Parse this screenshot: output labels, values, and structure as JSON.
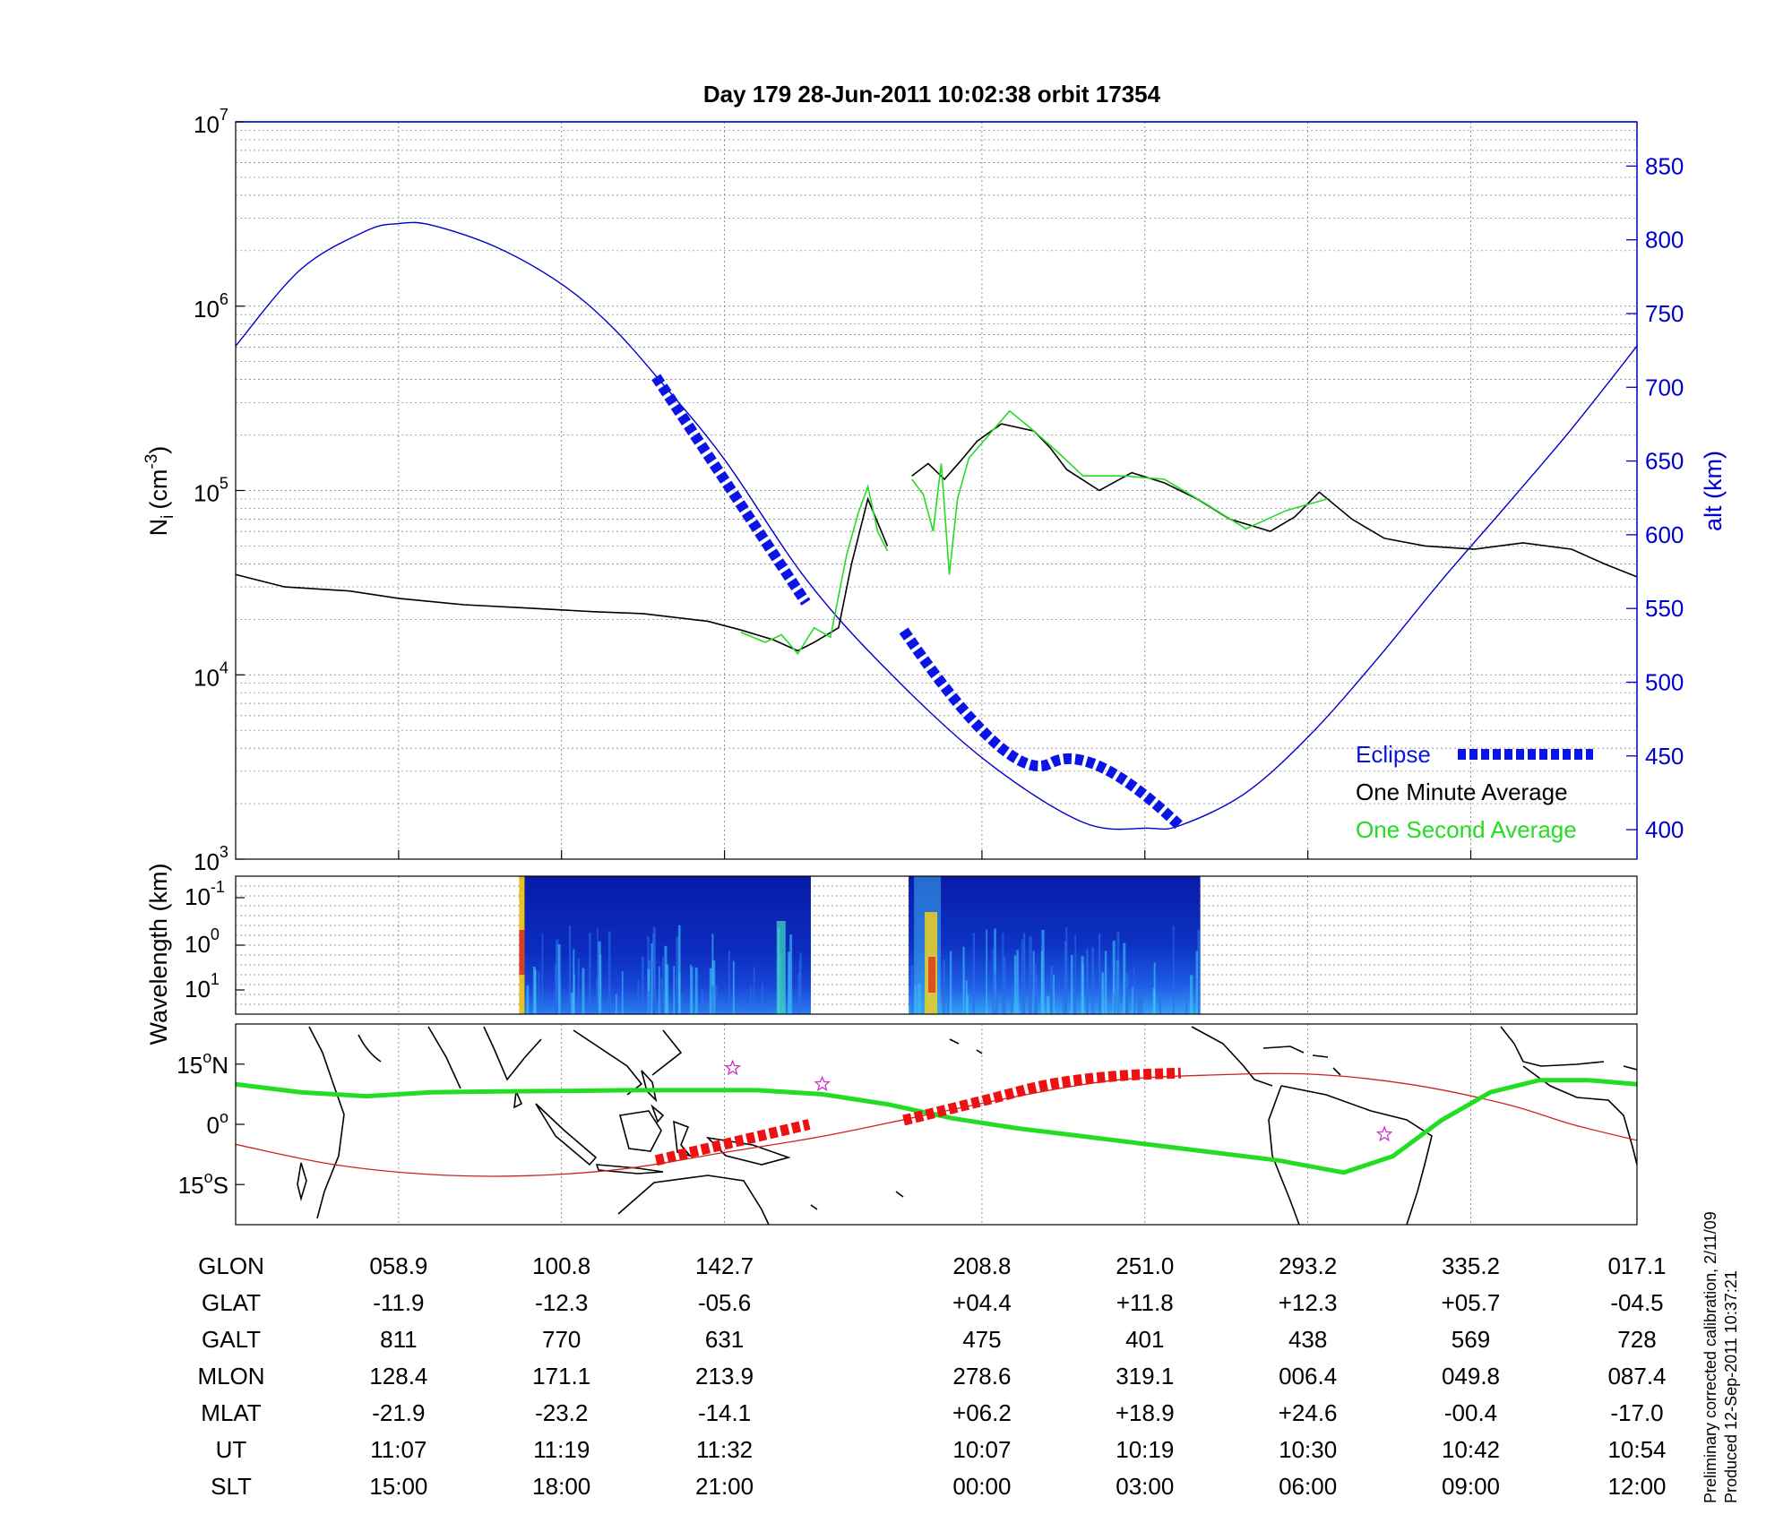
{
  "title": "Day 179  28-Jun-2011 10:02:38   orbit 17354",
  "colors": {
    "altitude": "#0000cc",
    "eclipse": "#0a14e6",
    "one_minute": "#000000",
    "one_second": "#22dd22",
    "footprint_track": "#22dd22",
    "footprint_eclipse": "#ee1111",
    "magnetic_equator": "#cc2222",
    "star_marker": "#cc33cc"
  },
  "chart_data": [
    {
      "type": "line",
      "panel": "density",
      "ylabel": "N_i (cm^-3)",
      "ylabel_parts": {
        "main": "N",
        "sub": "i",
        "paren": "(cm",
        "sup": "-3",
        "close": ")"
      },
      "y_scale": "log",
      "ylim": [
        1000,
        10000000
      ],
      "y_ticks": [
        {
          "base": "10",
          "exp": "3",
          "value": 1000
        },
        {
          "base": "10",
          "exp": "4",
          "value": 10000
        },
        {
          "base": "10",
          "exp": "5",
          "value": 100000
        },
        {
          "base": "10",
          "exp": "6",
          "value": 1000000
        },
        {
          "base": "10",
          "exp": "7",
          "value": 10000000
        }
      ],
      "xlim": [
        0,
        8.6
      ],
      "y2label": "alt (km)",
      "y2lim": [
        380,
        880
      ],
      "y2_ticks": [
        "400",
        "450",
        "500",
        "550",
        "600",
        "650",
        "700",
        "750",
        "800",
        "850"
      ],
      "legend": {
        "placement": "bottom-right",
        "entries": [
          {
            "label": "Eclipse",
            "key": "eclipse"
          },
          {
            "label": "One Minute Average",
            "key": "one_minute"
          },
          {
            "label": "One Second Average",
            "key": "one_second"
          }
        ]
      },
      "series": [
        {
          "key": "altitude",
          "axis": "right",
          "x": [
            0,
            0.4,
            0.8,
            1.0,
            1.2,
            1.6,
            2.0,
            2.3,
            2.6,
            3.0,
            3.5,
            4.0,
            4.6,
            5.2,
            5.6,
            5.8,
            6.2,
            6.6,
            7.0,
            7.4,
            7.8,
            8.2,
            8.6
          ],
          "y": [
            728,
            780,
            806,
            811,
            810,
            795,
            770,
            742,
            705,
            651,
            570,
            508,
            447,
            405,
            401,
            403,
            425,
            465,
            515,
            569,
            620,
            672,
            728
          ]
        },
        {
          "key": "one_minute",
          "axis": "left",
          "segments": [
            {
              "x": [
                0,
                0.3,
                0.7,
                1.0,
                1.4,
                1.8,
                2.2,
                2.5,
                2.9,
                3.1,
                3.3,
                3.45,
                3.55,
                3.7,
                3.78,
                3.88,
                4.0
              ],
              "y": [
                35000,
                30000,
                28500,
                26000,
                24000,
                23000,
                22000,
                21500,
                19500,
                17500,
                15500,
                13500,
                15000,
                18000,
                40000,
                90000,
                50000
              ]
            },
            {
              "x": [
                4.15,
                4.25,
                4.35,
                4.45,
                4.55,
                4.7,
                4.9,
                5.0,
                5.1,
                5.3,
                5.5,
                5.7,
                5.9,
                6.1,
                6.35,
                6.5,
                6.65,
                6.85,
                7.05,
                7.3,
                7.6,
                7.9,
                8.2,
                8.4,
                8.6
              ],
              "y": [
                120000,
                140000,
                115000,
                145000,
                185000,
                230000,
                210000,
                170000,
                130000,
                100000,
                125000,
                110000,
                90000,
                70000,
                60000,
                72000,
                98000,
                70000,
                55000,
                50000,
                48000,
                52000,
                48000,
                40000,
                34000
              ]
            }
          ]
        },
        {
          "key": "one_second",
          "axis": "left",
          "segments": [
            {
              "x": [
                3.1,
                3.25,
                3.35,
                3.45,
                3.55,
                3.65,
                3.75,
                3.82,
                3.88,
                3.94,
                4.0
              ],
              "y": [
                17000,
                15000,
                16500,
                13000,
                18000,
                16000,
                45000,
                75000,
                105000,
                60000,
                47000
              ]
            },
            {
              "x": [
                4.15,
                4.22,
                4.28,
                4.33,
                4.38,
                4.43,
                4.5,
                4.6,
                4.75,
                4.9,
                5.05,
                5.2,
                5.45,
                5.7,
                5.95,
                6.2,
                6.45,
                6.7
              ],
              "y": [
                115000,
                95000,
                60000,
                140000,
                35000,
                90000,
                150000,
                190000,
                270000,
                210000,
                160000,
                120000,
                120000,
                115000,
                85000,
                62000,
                78000,
                90000
              ]
            }
          ]
        },
        {
          "key": "eclipse",
          "axis": "right",
          "segments": [
            {
              "x": [
                2.58,
                3.5
              ],
              "y": [
                707,
                554
              ]
            },
            {
              "x": [
                4.1,
                5.0,
                5.8
              ],
              "y": [
                535,
                445,
                402
              ]
            }
          ]
        }
      ]
    },
    {
      "type": "heatmap",
      "panel": "spectrogram",
      "ylabel": "Wavelength (km)",
      "y_scale": "log",
      "y_ticks": [
        {
          "base": "10",
          "exp": "-1"
        },
        {
          "base": "10",
          "exp": "0"
        },
        {
          "base": "10",
          "exp": "1"
        }
      ],
      "xlim": [
        0,
        8.6
      ],
      "colored_intervals": [
        [
          1.74,
          3.53
        ],
        [
          4.13,
          5.92
        ]
      ]
    },
    {
      "type": "line",
      "panel": "map",
      "ylabel": "",
      "ylim": [
        -25,
        25
      ],
      "y_ticks": [
        {
          "label": "15",
          "deg": "o",
          "hemi": "N",
          "value": 15
        },
        {
          "label": "0",
          "deg": "o",
          "hemi": "",
          "value": 0
        },
        {
          "label": "15",
          "deg": "o",
          "hemi": "S",
          "value": -15
        }
      ],
      "xlim": [
        0,
        8.6
      ],
      "series": [
        {
          "key": "footprint_track",
          "x": [
            0,
            0.4,
            0.8,
            1.2,
            1.6,
            2.0,
            2.4,
            2.8,
            3.2,
            3.6,
            4.0,
            4.4,
            4.8,
            5.2,
            5.6,
            6.0,
            6.4,
            6.8,
            7.1,
            7.4,
            7.7,
            8.0,
            8.3,
            8.6
          ],
          "y": [
            10,
            8,
            7,
            8,
            8.2,
            8.3,
            8.5,
            8.5,
            8.5,
            7.5,
            5,
            1.5,
            -1,
            -3,
            -5,
            -7,
            -9,
            -12,
            -8,
            1,
            8,
            11,
            11,
            10
          ]
        },
        {
          "key": "footprint_eclipse",
          "segments": [
            {
              "x": [
                2.58,
                3.52
              ],
              "y": [
                -9,
                0
              ]
            },
            {
              "x": [
                4.1,
                4.6,
                5.0,
                5.4,
                5.8
              ],
              "y": [
                1,
                6,
                10,
                12,
                12.8
              ]
            }
          ]
        },
        {
          "key": "magnetic_equator",
          "x": [
            0,
            0.6,
            1.2,
            1.8,
            2.4,
            3.0,
            3.6,
            4.2,
            4.8,
            5.4,
            6.0,
            6.6,
            7.2,
            7.8,
            8.2,
            8.6
          ],
          "y": [
            -5,
            -10,
            -12.5,
            -12.8,
            -11,
            -7,
            -3,
            2,
            7,
            11,
            12.3,
            12.5,
            10,
            5,
            0,
            -4
          ]
        },
        {
          "key": "star_marker",
          "x": [
            3.05,
            3.6,
            7.05
          ],
          "y": [
            14,
            10,
            -2.5
          ]
        }
      ]
    }
  ],
  "table": {
    "row_labels": [
      "GLON",
      "GLAT",
      "GALT",
      "MLON",
      "MLAT",
      "UT",
      "SLT"
    ],
    "col_x": [
      1,
      2,
      3,
      4.58,
      5.58,
      6.58,
      7.58,
      8.6
    ],
    "rows": [
      [
        "058.9",
        "100.8",
        "142.7",
        "208.8",
        "251.0",
        "293.2",
        "335.2",
        "017.1"
      ],
      [
        "-11.9",
        "-12.3",
        "-05.6",
        "+04.4",
        "+11.8",
        "+12.3",
        "+05.7",
        "-04.5"
      ],
      [
        "811",
        "770",
        "631",
        "475",
        "401",
        "438",
        "569",
        "728"
      ],
      [
        "128.4",
        "171.1",
        "213.9",
        "278.6",
        "319.1",
        "006.4",
        "049.8",
        "087.4"
      ],
      [
        "-21.9",
        "-23.2",
        "-14.1",
        "+06.2",
        "+18.9",
        "+24.6",
        "-00.4",
        "-17.0"
      ],
      [
        "11:07",
        "11:19",
        "11:32",
        "10:07",
        "10:19",
        "10:30",
        "10:42",
        "10:54"
      ],
      [
        "15:00",
        "18:00",
        "21:00",
        "00:00",
        "03:00",
        "06:00",
        "09:00",
        "12:00"
      ]
    ]
  },
  "footnote": {
    "line1": "Preliminary corrected calibration, 2/11/09",
    "line2": "Produced 12-Sep-2011 10:37:21"
  }
}
